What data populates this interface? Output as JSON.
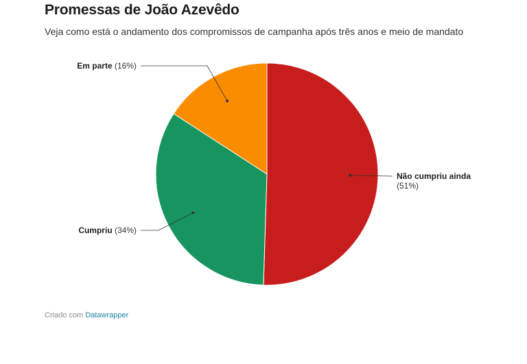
{
  "header": {
    "title": "Promessas de João Azevêdo",
    "subtitle": "Veja como está o andamento dos compromissos de campanha após três anos e meio de mandato"
  },
  "chart_data": {
    "type": "pie",
    "slices": [
      {
        "label": "Não cumpriu ainda",
        "value": 51,
        "value_label": "(51%)",
        "color": "#c71e1d"
      },
      {
        "label": "Cumpriu",
        "value": 34,
        "value_label": "(34%)",
        "color": "#18955e"
      },
      {
        "label": "Em parte",
        "value": 16,
        "value_label": "(16%)",
        "color": "#fa8c00"
      }
    ]
  },
  "footer": {
    "prefix": "Criado com",
    "link": "Datawrapper"
  }
}
